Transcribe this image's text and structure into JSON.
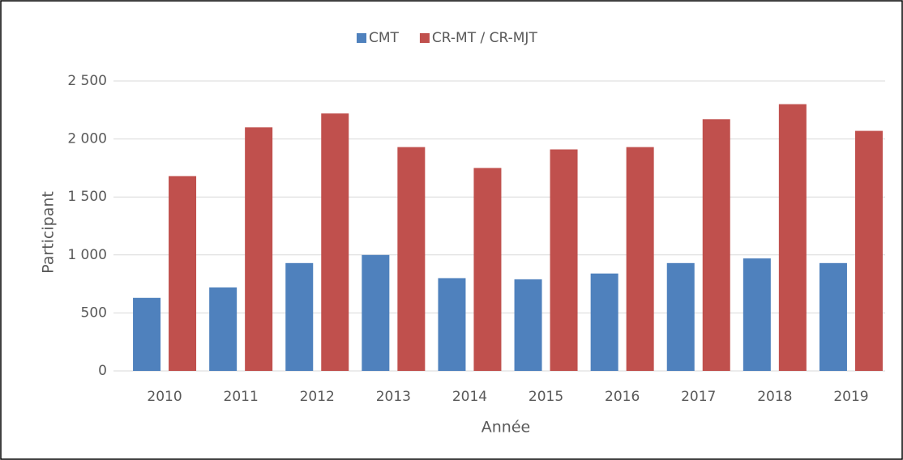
{
  "chart_data": {
    "type": "bar",
    "categories": [
      "2010",
      "2011",
      "2012",
      "2013",
      "2014",
      "2015",
      "2016",
      "2017",
      "2018",
      "2019"
    ],
    "series": [
      {
        "name": "CMT",
        "color": "#4f81bd",
        "values": [
          630,
          720,
          930,
          1000,
          800,
          790,
          840,
          930,
          970,
          930
        ]
      },
      {
        "name": "CR-MT / CR-MJT",
        "color": "#c0504d",
        "values": [
          1680,
          2100,
          2220,
          1930,
          1750,
          1910,
          1930,
          2170,
          2300,
          2070
        ]
      }
    ],
    "x_label": "Année",
    "y_label": "Participant",
    "ylim": [
      0,
      2500
    ],
    "yticks": [
      0,
      500,
      {
        "value": 1000,
        "label": "1 000"
      },
      {
        "value": 1500,
        "label": "1 500"
      },
      {
        "value": 2000,
        "label": "2 000"
      },
      {
        "value": 2500,
        "label": "2 500"
      }
    ],
    "grid": true,
    "legend": "top"
  }
}
